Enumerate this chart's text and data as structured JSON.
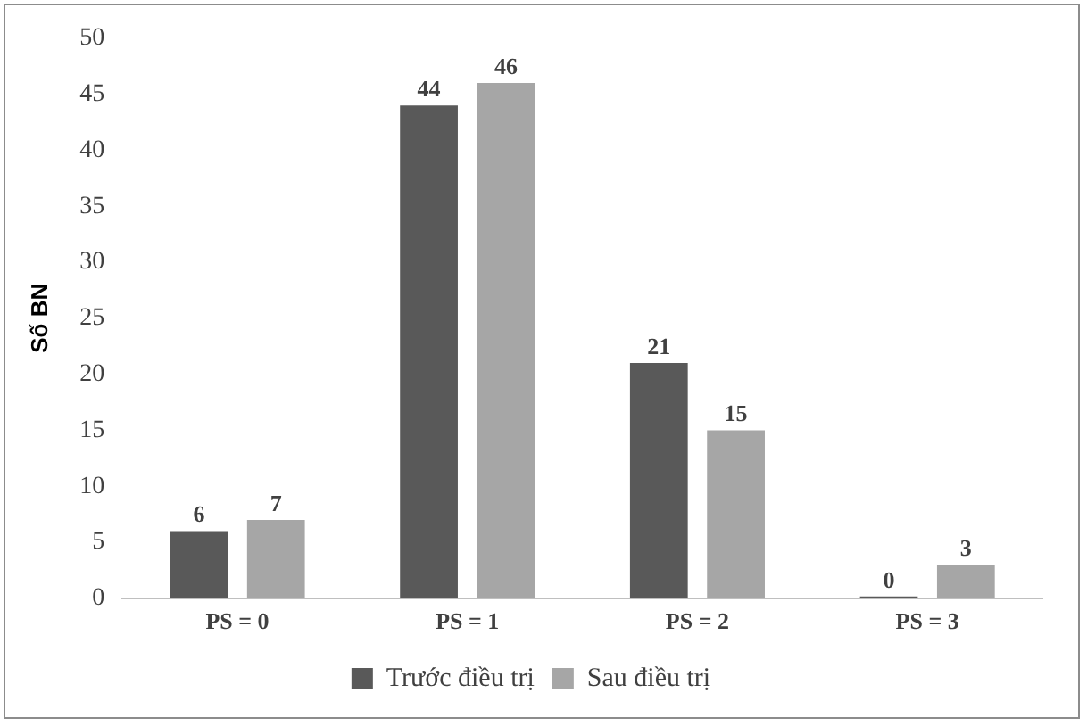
{
  "chart_data": {
    "type": "bar",
    "ylabel": "Số BN",
    "categories": [
      "PS = 0",
      "PS = 1",
      "PS = 2",
      "PS = 3"
    ],
    "series": [
      {
        "name": "Trước điều trị",
        "color": "#595959",
        "values": [
          6,
          44,
          21,
          0
        ]
      },
      {
        "name": "Sau điều trị",
        "color": "#a6a6a6",
        "values": [
          7,
          46,
          15,
          3
        ]
      }
    ],
    "ylim": [
      0,
      50
    ],
    "yticks": [
      0,
      5,
      10,
      15,
      20,
      25,
      30,
      35,
      40,
      45,
      50
    ],
    "grid": false,
    "legend": "bottom",
    "data_labels": true
  }
}
